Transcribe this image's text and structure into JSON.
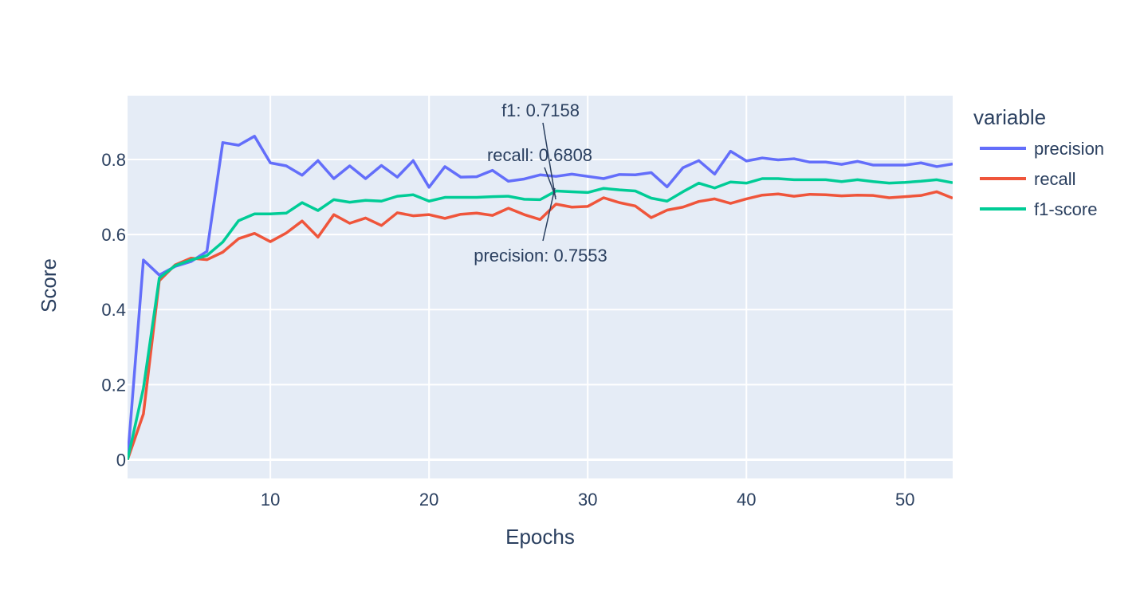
{
  "chart_data": {
    "type": "line",
    "title": "",
    "xlabel": "Epochs",
    "ylabel": "Score",
    "xlim": [
      1,
      53
    ],
    "ylim": [
      -0.05,
      0.97
    ],
    "x_ticks": [
      10,
      20,
      30,
      40,
      50
    ],
    "y_ticks": [
      0,
      0.2,
      0.4,
      0.6,
      0.8
    ],
    "grid": true,
    "legend": {
      "title": "variable",
      "placement": "right"
    },
    "colors": {
      "plot_bg": "#e5ecf6",
      "grid": "#ffffff",
      "text": "#2a3f5f",
      "precision": "#636efa",
      "recall": "#ef553b",
      "f1-score": "#00cc96"
    },
    "x": [
      1,
      2,
      3,
      4,
      5,
      6,
      7,
      8,
      9,
      10,
      11,
      12,
      13,
      14,
      15,
      16,
      17,
      18,
      19,
      20,
      21,
      22,
      23,
      24,
      25,
      26,
      27,
      28,
      29,
      30,
      31,
      32,
      33,
      34,
      35,
      36,
      37,
      38,
      39,
      40,
      41,
      42,
      43,
      44,
      45,
      46,
      47,
      48,
      49,
      50,
      51,
      52,
      53
    ],
    "series": [
      {
        "name": "precision",
        "values": [
          0.0,
          0.532,
          0.492,
          0.515,
          0.528,
          0.555,
          0.845,
          0.838,
          0.862,
          0.791,
          0.783,
          0.758,
          0.797,
          0.749,
          0.783,
          0.749,
          0.784,
          0.753,
          0.797,
          0.726,
          0.781,
          0.753,
          0.754,
          0.771,
          0.742,
          0.748,
          0.759,
          0.755,
          0.761,
          0.755,
          0.749,
          0.76,
          0.759,
          0.765,
          0.727,
          0.778,
          0.797,
          0.761,
          0.822,
          0.796,
          0.804,
          0.799,
          0.802,
          0.793,
          0.793,
          0.787,
          0.795,
          0.785,
          0.785,
          0.785,
          0.791,
          0.781,
          0.788
        ]
      },
      {
        "name": "recall",
        "values": [
          0.0,
          0.122,
          0.477,
          0.519,
          0.537,
          0.533,
          0.553,
          0.589,
          0.603,
          0.581,
          0.604,
          0.636,
          0.593,
          0.653,
          0.63,
          0.644,
          0.624,
          0.658,
          0.65,
          0.653,
          0.643,
          0.654,
          0.657,
          0.651,
          0.67,
          0.653,
          0.64,
          0.681,
          0.673,
          0.675,
          0.698,
          0.685,
          0.676,
          0.645,
          0.665,
          0.673,
          0.688,
          0.695,
          0.683,
          0.695,
          0.705,
          0.708,
          0.702,
          0.707,
          0.706,
          0.703,
          0.705,
          0.704,
          0.698,
          0.701,
          0.704,
          0.714,
          0.697
        ]
      },
      {
        "name": "f1-score",
        "values": [
          0.0,
          0.19,
          0.484,
          0.517,
          0.532,
          0.544,
          0.58,
          0.637,
          0.655,
          0.655,
          0.657,
          0.685,
          0.664,
          0.693,
          0.686,
          0.691,
          0.689,
          0.702,
          0.706,
          0.689,
          0.699,
          0.699,
          0.699,
          0.701,
          0.702,
          0.694,
          0.693,
          0.716,
          0.714,
          0.712,
          0.723,
          0.719,
          0.716,
          0.697,
          0.689,
          0.714,
          0.737,
          0.724,
          0.74,
          0.737,
          0.749,
          0.749,
          0.746,
          0.746,
          0.746,
          0.741,
          0.746,
          0.741,
          0.737,
          0.739,
          0.742,
          0.746,
          0.738
        ]
      }
    ],
    "annotations": [
      {
        "text": "f1: 0.7158",
        "x": 28,
        "y": 0.7158
      },
      {
        "text": "recall: 0.6808",
        "x": 28,
        "y": 0.6808
      },
      {
        "text": "precision: 0.7553",
        "x": 28,
        "y": 0.7553
      }
    ]
  }
}
